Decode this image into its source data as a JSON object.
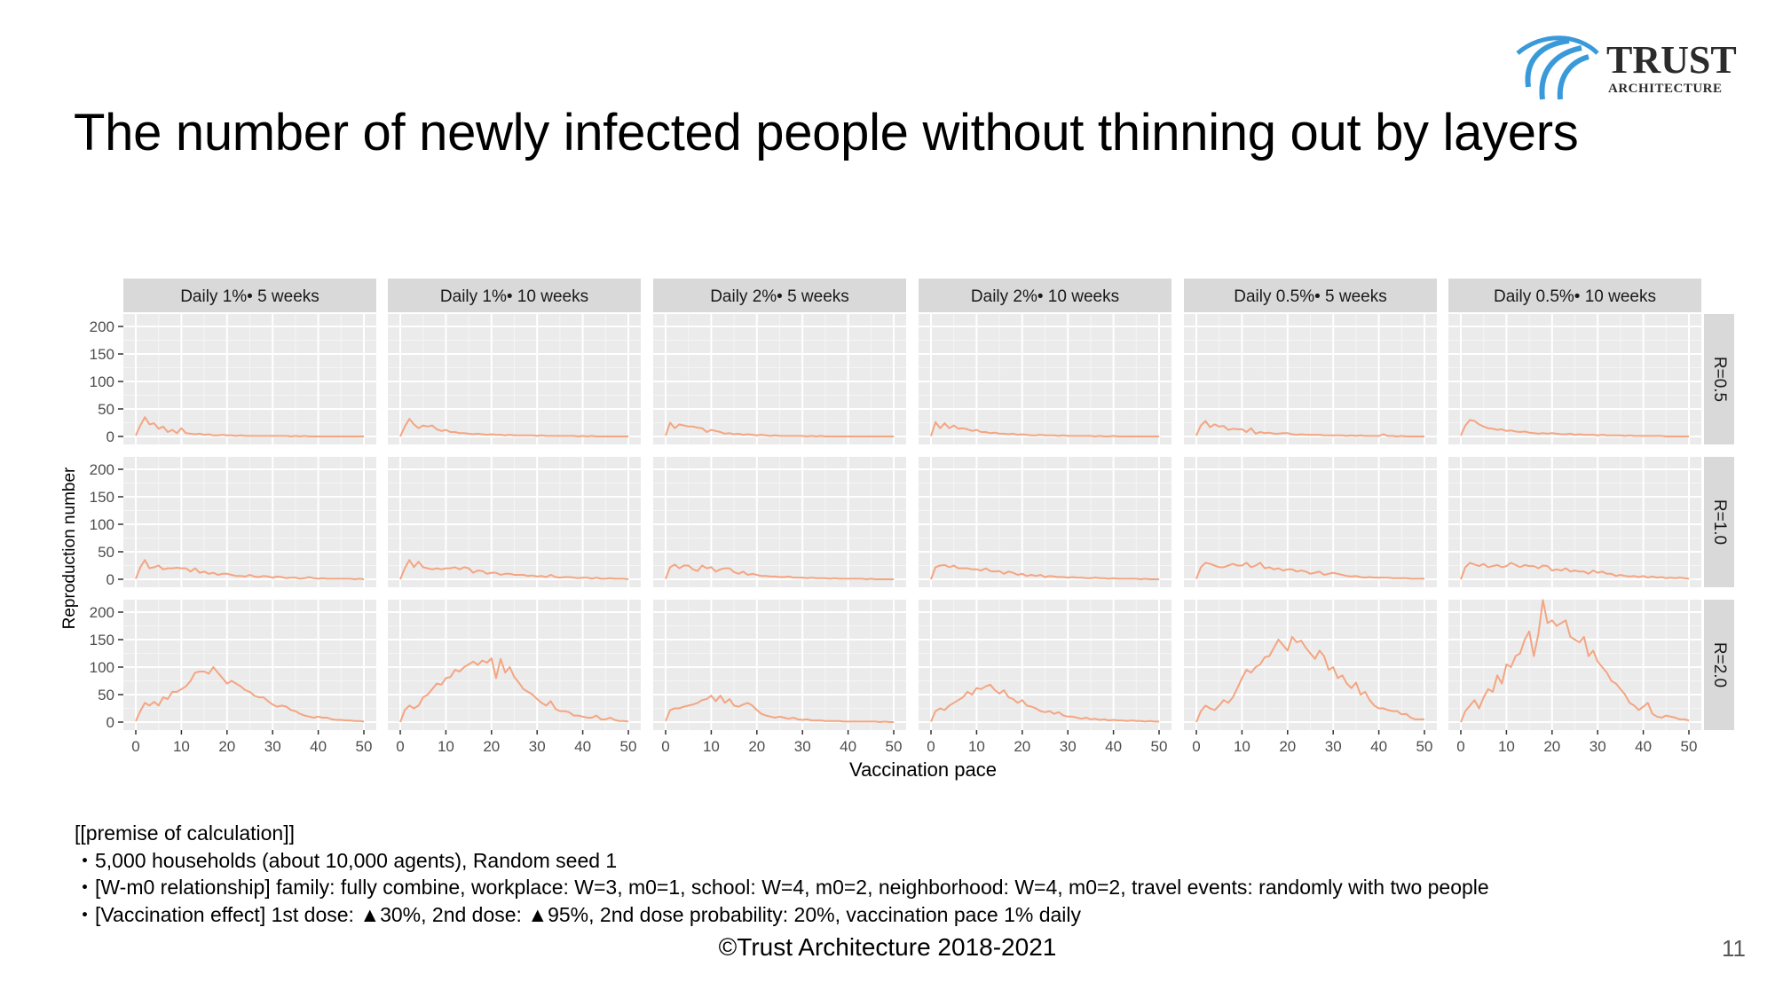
{
  "slide": {
    "title": "The number of newly infected people without thinning out by layers",
    "copyright": "©Trust Architecture 2018-2021",
    "page_number": "11",
    "logo": {
      "wordmark": "TRUST",
      "subtitle": "ARCHITECTURE",
      "mark_color": "#3a9ad9",
      "text_color": "#2b2b2b"
    },
    "notes": [
      "[[premise of calculation]]",
      "・5,000 households (about 10,000 agents), Random seed 1",
      "・[W-m0 relationship] family: fully combine, workplace: W=3, m0=1, school: W=4, m0=2, neighborhood: W=4, m0=2, travel events: randomly with two people",
      "・[Vaccination effect] 1st dose: ▲30%, 2nd dose: ▲95%, 2nd dose probability: 20%, vaccination pace 1% daily"
    ]
  },
  "chart_data": {
    "type": "line",
    "facet": "grid",
    "xlabel": "Vaccination pace",
    "ylabel": "Reproduction number",
    "xlim": [
      0,
      50
    ],
    "ylim": [
      0,
      200
    ],
    "xticks": [
      0,
      10,
      20,
      30,
      40,
      50
    ],
    "yticks": [
      0,
      50,
      100,
      150,
      200
    ],
    "grid": true,
    "line_color": "#f4a582",
    "panel_background": "#ebebeb",
    "strip_background": "#d9d9d9",
    "columns": [
      "Daily 1%• 5 weeks",
      "Daily 1%• 10 weeks",
      "Daily 2%• 5 weeks",
      "Daily 2%• 10 weeks",
      "Daily 0.5%• 5 weeks",
      "Daily 0.5%• 10 weeks"
    ],
    "rows": [
      "R=0.5",
      "R=1.0",
      "R=2.0"
    ],
    "x": [
      0,
      1,
      2,
      3,
      4,
      5,
      6,
      7,
      8,
      9,
      10,
      11,
      12,
      13,
      14,
      15,
      16,
      17,
      18,
      19,
      20,
      21,
      22,
      23,
      24,
      25,
      26,
      27,
      28,
      29,
      30,
      31,
      32,
      33,
      34,
      35,
      36,
      37,
      38,
      39,
      40,
      41,
      42,
      43,
      44,
      45,
      46,
      47,
      48,
      49,
      50
    ],
    "panels": [
      [
        {
          "column": "Daily 1%• 5 weeks",
          "values": [
            2,
            20,
            35,
            22,
            24,
            14,
            18,
            8,
            12,
            6,
            15,
            6,
            5,
            4,
            5,
            3,
            4,
            2,
            2,
            3,
            2,
            2,
            1,
            2,
            1,
            1,
            1,
            1,
            1,
            1,
            1,
            1,
            1,
            1,
            0,
            1,
            0,
            1,
            0,
            0,
            0,
            0,
            0,
            0,
            0,
            0,
            0,
            0,
            0,
            0,
            0
          ]
        },
        {
          "column": "Daily 1%• 10 weeks",
          "values": [
            0,
            18,
            32,
            22,
            15,
            20,
            18,
            20,
            13,
            10,
            12,
            8,
            8,
            6,
            6,
            5,
            4,
            5,
            4,
            3,
            4,
            3,
            3,
            2,
            3,
            2,
            2,
            2,
            2,
            2,
            1,
            2,
            1,
            1,
            1,
            1,
            1,
            1,
            1,
            0,
            1,
            0,
            1,
            0,
            0,
            0,
            0,
            0,
            0,
            0,
            0
          ]
        },
        {
          "column": "Daily 2%• 5 weeks",
          "values": [
            2,
            25,
            15,
            22,
            20,
            18,
            18,
            16,
            15,
            8,
            12,
            10,
            8,
            5,
            6,
            4,
            5,
            3,
            4,
            3,
            2,
            3,
            2,
            1,
            2,
            1,
            1,
            1,
            1,
            1,
            1,
            0,
            1,
            0,
            1,
            0,
            0,
            0,
            0,
            0,
            0,
            0,
            0,
            0,
            0,
            0,
            0,
            0,
            0,
            0,
            0
          ]
        },
        {
          "column": "Daily 2%• 10 weeks",
          "values": [
            1,
            26,
            15,
            24,
            15,
            20,
            14,
            15,
            13,
            10,
            12,
            8,
            8,
            6,
            7,
            5,
            5,
            4,
            5,
            3,
            4,
            3,
            2,
            2,
            3,
            2,
            2,
            2,
            1,
            2,
            1,
            1,
            1,
            1,
            1,
            1,
            0,
            1,
            0,
            0,
            1,
            0,
            0,
            0,
            0,
            0,
            0,
            0,
            0,
            0,
            0
          ]
        },
        {
          "column": "Daily 0.5%• 5 weeks",
          "values": [
            2,
            20,
            28,
            17,
            22,
            18,
            19,
            12,
            14,
            13,
            13,
            8,
            15,
            5,
            8,
            6,
            7,
            5,
            5,
            6,
            6,
            4,
            3,
            4,
            3,
            3,
            3,
            3,
            2,
            2,
            2,
            2,
            2,
            1,
            2,
            1,
            2,
            1,
            1,
            1,
            1,
            4,
            1,
            1,
            0,
            1,
            0,
            0,
            0,
            0,
            0
          ]
        },
        {
          "column": "Daily 0.5%• 10 weeks",
          "values": [
            2,
            20,
            30,
            28,
            22,
            18,
            15,
            14,
            12,
            13,
            10,
            11,
            9,
            8,
            9,
            7,
            6,
            5,
            6,
            5,
            6,
            5,
            4,
            4,
            5,
            3,
            4,
            3,
            3,
            3,
            2,
            3,
            2,
            2,
            2,
            2,
            1,
            2,
            1,
            1,
            1,
            1,
            1,
            1,
            1,
            0,
            0,
            0,
            0,
            0,
            0
          ]
        }
      ],
      [
        {
          "column": "Daily 1%• 5 weeks",
          "values": [
            1,
            22,
            35,
            20,
            22,
            25,
            18,
            20,
            20,
            21,
            20,
            20,
            14,
            20,
            12,
            14,
            10,
            12,
            8,
            10,
            10,
            8,
            6,
            6,
            5,
            8,
            5,
            4,
            6,
            5,
            3,
            5,
            4,
            2,
            3,
            3,
            1,
            2,
            4,
            2,
            1,
            2,
            1,
            1,
            1,
            1,
            1,
            1,
            0,
            1,
            0
          ]
        },
        {
          "column": "Daily 1%• 10 weeks",
          "values": [
            0,
            20,
            35,
            22,
            32,
            22,
            20,
            18,
            20,
            18,
            20,
            20,
            22,
            18,
            22,
            20,
            12,
            16,
            15,
            10,
            12,
            12,
            8,
            10,
            10,
            8,
            8,
            8,
            6,
            7,
            5,
            6,
            4,
            8,
            4,
            3,
            4,
            4,
            3,
            2,
            3,
            3,
            1,
            3,
            1,
            1,
            2,
            1,
            1,
            1,
            0
          ]
        },
        {
          "column": "Daily 2%• 5 weeks",
          "values": [
            1,
            22,
            27,
            20,
            25,
            25,
            18,
            15,
            25,
            20,
            22,
            14,
            18,
            20,
            20,
            13,
            10,
            14,
            8,
            10,
            8,
            6,
            6,
            5,
            5,
            4,
            4,
            5,
            3,
            3,
            3,
            2,
            3,
            2,
            2,
            2,
            1,
            2,
            1,
            1,
            1,
            1,
            1,
            1,
            0,
            1,
            0,
            0,
            0,
            0,
            0
          ]
        },
        {
          "column": "Daily 2%• 10 weeks",
          "values": [
            0,
            22,
            25,
            26,
            22,
            25,
            20,
            20,
            20,
            18,
            18,
            16,
            20,
            15,
            14,
            15,
            10,
            14,
            12,
            8,
            10,
            6,
            8,
            6,
            8,
            4,
            6,
            5,
            4,
            4,
            3,
            4,
            3,
            3,
            2,
            2,
            3,
            2,
            2,
            1,
            2,
            1,
            1,
            1,
            1,
            1,
            0,
            1,
            0,
            0,
            0
          ]
        },
        {
          "column": "Daily 0.5%• 5 weeks",
          "values": [
            1,
            22,
            30,
            28,
            25,
            22,
            22,
            25,
            28,
            25,
            25,
            30,
            22,
            25,
            30,
            20,
            22,
            18,
            20,
            16,
            18,
            18,
            14,
            16,
            14,
            10,
            12,
            14,
            8,
            10,
            12,
            10,
            8,
            6,
            5,
            6,
            4,
            3,
            4,
            3,
            3,
            3,
            3,
            2,
            2,
            2,
            2,
            1,
            1,
            1,
            1
          ]
        },
        {
          "column": "Daily 0.5%• 10 weeks",
          "values": [
            0,
            22,
            30,
            27,
            24,
            28,
            22,
            24,
            26,
            22,
            24,
            30,
            26,
            22,
            26,
            24,
            24,
            20,
            25,
            24,
            16,
            18,
            16,
            20,
            14,
            16,
            14,
            14,
            10,
            16,
            12,
            14,
            10,
            10,
            6,
            8,
            6,
            5,
            6,
            4,
            6,
            3,
            5,
            3,
            4,
            2,
            3,
            2,
            3,
            2,
            1
          ]
        }
      ],
      [
        {
          "column": "Daily 1%• 5 weeks",
          "values": [
            2,
            20,
            35,
            30,
            37,
            30,
            45,
            42,
            55,
            55,
            60,
            65,
            75,
            90,
            92,
            92,
            88,
            100,
            90,
            80,
            70,
            75,
            70,
            65,
            58,
            55,
            48,
            45,
            45,
            38,
            32,
            28,
            30,
            28,
            22,
            20,
            15,
            12,
            10,
            8,
            10,
            8,
            8,
            5,
            4,
            4,
            3,
            3,
            2,
            2,
            1
          ]
        },
        {
          "column": "Daily 1%• 10 weeks",
          "values": [
            0,
            22,
            30,
            25,
            30,
            45,
            50,
            60,
            70,
            68,
            80,
            82,
            95,
            92,
            100,
            105,
            110,
            104,
            112,
            108,
            116,
            80,
            115,
            90,
            100,
            82,
            72,
            60,
            55,
            50,
            42,
            35,
            30,
            38,
            24,
            20,
            20,
            18,
            12,
            12,
            10,
            8,
            8,
            12,
            5,
            5,
            8,
            4,
            2,
            2,
            1
          ]
        },
        {
          "column": "Daily 2%• 5 weeks",
          "values": [
            2,
            22,
            25,
            25,
            28,
            30,
            32,
            35,
            40,
            42,
            48,
            38,
            48,
            35,
            42,
            30,
            28,
            32,
            35,
            30,
            22,
            15,
            12,
            10,
            8,
            10,
            8,
            6,
            8,
            5,
            4,
            5,
            3,
            3,
            3,
            2,
            2,
            2,
            2,
            1,
            1,
            1,
            1,
            1,
            1,
            1,
            1,
            0,
            1,
            0,
            0
          ]
        },
        {
          "column": "Daily 2%• 10 weeks",
          "values": [
            1,
            20,
            25,
            22,
            30,
            35,
            40,
            45,
            55,
            50,
            62,
            60,
            65,
            68,
            58,
            52,
            58,
            45,
            42,
            35,
            40,
            30,
            28,
            25,
            20,
            18,
            20,
            15,
            18,
            12,
            10,
            10,
            8,
            6,
            8,
            5,
            6,
            4,
            5,
            3,
            4,
            3,
            3,
            2,
            3,
            2,
            2,
            1,
            2,
            1,
            1
          ]
        },
        {
          "column": "Daily 0.5%• 5 weeks",
          "values": [
            0,
            20,
            30,
            25,
            22,
            30,
            40,
            35,
            45,
            62,
            80,
            95,
            90,
            100,
            105,
            118,
            120,
            135,
            150,
            140,
            130,
            155,
            145,
            148,
            135,
            125,
            115,
            130,
            120,
            95,
            100,
            80,
            85,
            70,
            62,
            72,
            50,
            55,
            40,
            30,
            25,
            25,
            22,
            20,
            20,
            14,
            15,
            8,
            5,
            5,
            5
          ]
        },
        {
          "column": "Daily 0.5%• 10 weeks",
          "values": [
            0,
            20,
            30,
            40,
            25,
            45,
            60,
            55,
            85,
            70,
            105,
            100,
            120,
            125,
            150,
            165,
            120,
            160,
            222,
            180,
            185,
            175,
            180,
            185,
            155,
            150,
            145,
            155,
            120,
            130,
            110,
            100,
            90,
            75,
            70,
            60,
            50,
            35,
            30,
            22,
            28,
            35,
            15,
            10,
            8,
            12,
            10,
            8,
            5,
            5,
            3
          ]
        }
      ]
    ]
  }
}
